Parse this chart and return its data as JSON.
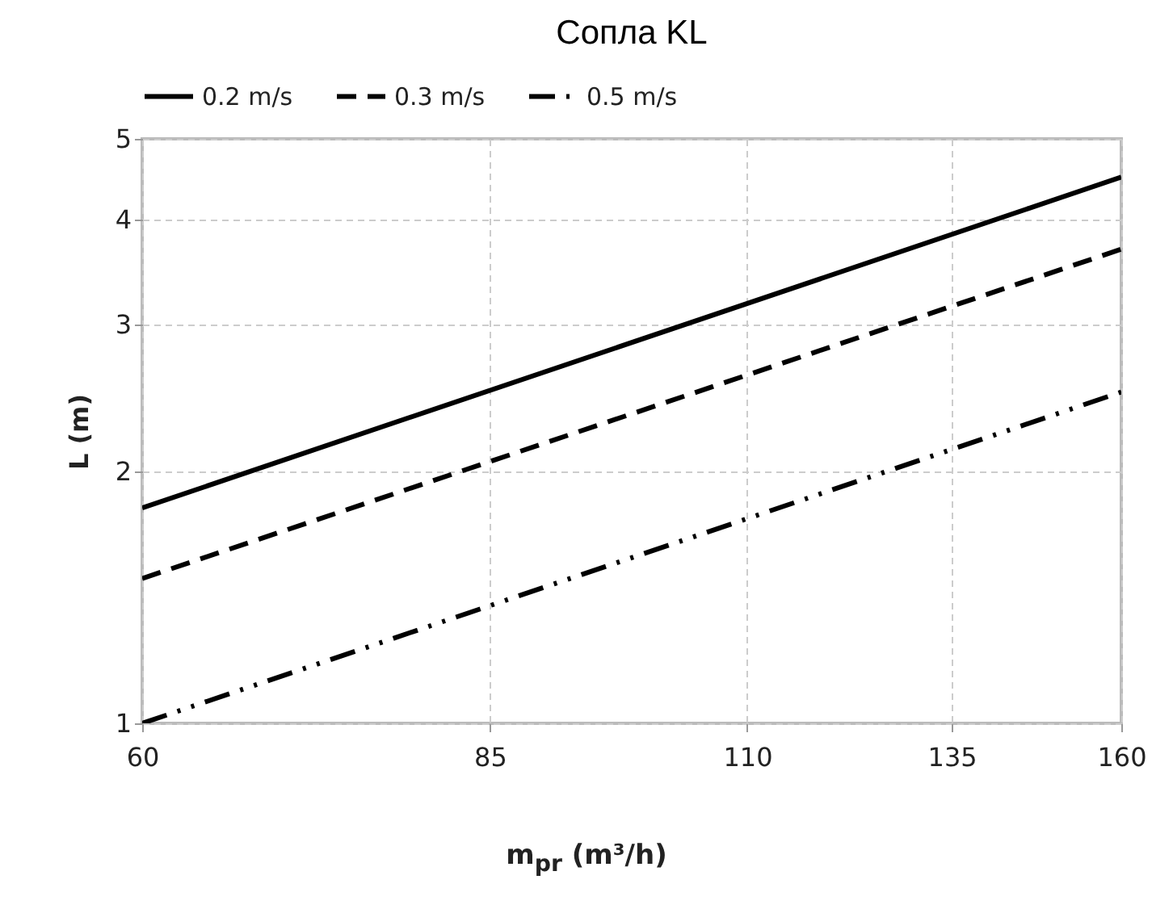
{
  "chart_data": {
    "type": "line",
    "title": "Сопла KL",
    "xlabel": "m$_{pr}$ (m³/h)",
    "ylabel": "L (m)",
    "x": [
      60,
      160
    ],
    "series": [
      {
        "name": "0.2 m/s",
        "color": "#000000",
        "line_style": "solid",
        "values": [
          1.81,
          4.5
        ]
      },
      {
        "name": "0.3 m/s",
        "color": "#000000",
        "line_style": "dashed",
        "values": [
          1.49,
          3.69
        ]
      },
      {
        "name": "0.5 m/s",
        "color": "#000000",
        "line_style": "dashdotdot",
        "values": [
          1.0,
          2.49
        ]
      }
    ],
    "xlim": [
      60,
      160
    ],
    "xticks": [
      60,
      85,
      110,
      135,
      160
    ],
    "ylim": [
      1,
      5
    ],
    "yticks": [
      1,
      2,
      3,
      4,
      5
    ],
    "log": "xy",
    "grid": true,
    "legend": "top",
    "marker": "none"
  }
}
